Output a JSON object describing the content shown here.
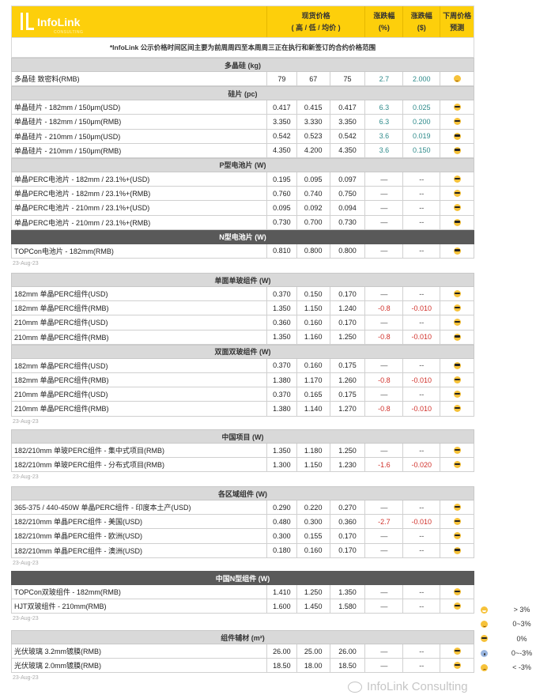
{
  "header": {
    "brand": "InfoLink",
    "brand_sub": "CONSULTING",
    "col_price": "现货价格",
    "col_price_sub": "( 高 / 低 / 均价 )",
    "col_pct": "涨跌幅",
    "col_pct_unit": "(%)",
    "col_usd": "涨跌幅",
    "col_usd_unit": "($)",
    "col_forecast": "下周价格",
    "col_forecast2": "预测"
  },
  "note": "*InfoLink 公示价格时间区间主要为前周周四至本周周三正在执行和新签订的合约价格范围",
  "colors": {
    "header_yellow": "#fdcf0b",
    "up": "#2d8a8a",
    "down": "#d0302a",
    "section_gray": "#d9d9d9",
    "section_dark": "#595959"
  },
  "blocks": [
    {
      "date": "23-Aug-23",
      "sections": [
        {
          "title": "多晶硅 (kg)",
          "dark": false,
          "rows": [
            {
              "name": "多晶硅 致密料(RMB)",
              "high": "79",
              "low": "67",
              "avg": "75",
              "pct": "2.7",
              "usd": "2.000",
              "trend": "up",
              "forecast": "smile"
            }
          ]
        },
        {
          "title": "硅片 (pc)",
          "dark": false,
          "rows": [
            {
              "name": "单晶硅片 - 182mm / 150μm(USD)",
              "high": "0.417",
              "low": "0.415",
              "avg": "0.417",
              "pct": "6.3",
              "usd": "0.025",
              "trend": "up",
              "forecast": "cool"
            },
            {
              "name": "单晶硅片 - 182mm / 150μm(RMB)",
              "high": "3.350",
              "low": "3.330",
              "avg": "3.350",
              "pct": "6.3",
              "usd": "0.200",
              "trend": "up",
              "forecast": "cool"
            },
            {
              "name": "单晶硅片 - 210mm / 150μm(USD)",
              "high": "0.542",
              "low": "0.523",
              "avg": "0.542",
              "pct": "3.6",
              "usd": "0.019",
              "trend": "up",
              "forecast": "cool"
            },
            {
              "name": "单晶硅片 - 210mm / 150μm(RMB)",
              "high": "4.350",
              "low": "4.200",
              "avg": "4.350",
              "pct": "3.6",
              "usd": "0.150",
              "trend": "up",
              "forecast": "cool"
            }
          ]
        },
        {
          "title": "P型电池片 (W)",
          "dark": false,
          "rows": [
            {
              "name": "单晶PERC电池片 - 182mm / 23.1%+(USD)",
              "high": "0.195",
              "low": "0.095",
              "avg": "0.097",
              "pct": "—",
              "usd": "--",
              "trend": "flat",
              "forecast": "cool"
            },
            {
              "name": "单晶PERC电池片 - 182mm / 23.1%+(RMB)",
              "high": "0.760",
              "low": "0.740",
              "avg": "0.750",
              "pct": "—",
              "usd": "--",
              "trend": "flat",
              "forecast": "cool"
            },
            {
              "name": "单晶PERC电池片 - 210mm / 23.1%+(USD)",
              "high": "0.095",
              "low": "0.092",
              "avg": "0.094",
              "pct": "—",
              "usd": "--",
              "trend": "flat",
              "forecast": "cool"
            },
            {
              "name": "单晶PERC电池片 - 210mm / 23.1%+(RMB)",
              "high": "0.730",
              "low": "0.700",
              "avg": "0.730",
              "pct": "—",
              "usd": "--",
              "trend": "flat",
              "forecast": "cool"
            }
          ]
        },
        {
          "title": "N型电池片 (W)",
          "dark": true,
          "rows": [
            {
              "name": "TOPCon电池片 - 182mm(RMB)",
              "high": "0.810",
              "low": "0.800",
              "avg": "0.800",
              "pct": "—",
              "usd": "--",
              "trend": "flat",
              "forecast": "cool"
            }
          ]
        }
      ]
    },
    {
      "date": "23-Aug-23",
      "sections": [
        {
          "title": "单面单玻组件 (W)",
          "dark": false,
          "rows": [
            {
              "name": "182mm 单晶PERC组件(USD)",
              "high": "0.370",
              "low": "0.150",
              "avg": "0.170",
              "pct": "—",
              "usd": "--",
              "trend": "flat",
              "forecast": "cool"
            },
            {
              "name": "182mm 单晶PERC组件(RMB)",
              "high": "1.350",
              "low": "1.150",
              "avg": "1.240",
              "pct": "-0.8",
              "usd": "-0.010",
              "trend": "down",
              "forecast": "cool"
            },
            {
              "name": "210mm 单晶PERC组件(USD)",
              "high": "0.360",
              "low": "0.160",
              "avg": "0.170",
              "pct": "—",
              "usd": "--",
              "trend": "flat",
              "forecast": "cool"
            },
            {
              "name": "210mm 单晶PERC组件(RMB)",
              "high": "1.350",
              "low": "1.160",
              "avg": "1.250",
              "pct": "-0.8",
              "usd": "-0.010",
              "trend": "down",
              "forecast": "cool"
            }
          ]
        },
        {
          "title": "双面双玻组件 (W)",
          "dark": false,
          "rows": [
            {
              "name": "182mm 单晶PERC组件(USD)",
              "high": "0.370",
              "low": "0.160",
              "avg": "0.175",
              "pct": "—",
              "usd": "--",
              "trend": "flat",
              "forecast": "cool"
            },
            {
              "name": "182mm 单晶PERC组件(RMB)",
              "high": "1.380",
              "low": "1.170",
              "avg": "1.260",
              "pct": "-0.8",
              "usd": "-0.010",
              "trend": "down",
              "forecast": "cool"
            },
            {
              "name": "210mm 单晶PERC组件(USD)",
              "high": "0.370",
              "low": "0.165",
              "avg": "0.175",
              "pct": "—",
              "usd": "--",
              "trend": "flat",
              "forecast": "cool"
            },
            {
              "name": "210mm 单晶PERC组件(RMB)",
              "high": "1.380",
              "low": "1.140",
              "avg": "1.270",
              "pct": "-0.8",
              "usd": "-0.010",
              "trend": "down",
              "forecast": "cool"
            }
          ]
        }
      ]
    },
    {
      "date": "23-Aug-23",
      "sections": [
        {
          "title": "中国项目 (W)",
          "dark": false,
          "rows": [
            {
              "name": "182/210mm 单玻PERC组件 - 集中式项目(RMB)",
              "high": "1.350",
              "low": "1.180",
              "avg": "1.250",
              "pct": "—",
              "usd": "--",
              "trend": "flat",
              "forecast": "cool"
            },
            {
              "name": "182/210mm 单玻PERC组件 - 分布式项目(RMB)",
              "high": "1.300",
              "low": "1.150",
              "avg": "1.230",
              "pct": "-1.6",
              "usd": "-0.020",
              "trend": "down",
              "forecast": "cool"
            }
          ]
        }
      ]
    },
    {
      "date": "23-Aug-23",
      "sections": [
        {
          "title": "各区域组件 (W)",
          "dark": false,
          "rows": [
            {
              "name": "365-375 / 440-450W 单晶PERC组件 - 印度本土产(USD)",
              "high": "0.290",
              "low": "0.220",
              "avg": "0.270",
              "pct": "—",
              "usd": "--",
              "trend": "flat",
              "forecast": "cool"
            },
            {
              "name": "182/210mm 单晶PERC组件 - 美国(USD)",
              "high": "0.480",
              "low": "0.300",
              "avg": "0.360",
              "pct": "-2.7",
              "usd": "-0.010",
              "trend": "down",
              "forecast": "cool"
            },
            {
              "name": "182/210mm 单晶PERC组件 - 欧洲(USD)",
              "high": "0.300",
              "low": "0.155",
              "avg": "0.170",
              "pct": "—",
              "usd": "--",
              "trend": "flat",
              "forecast": "cool"
            },
            {
              "name": "182/210mm 单晶PERC组件 - 澳洲(USD)",
              "high": "0.180",
              "low": "0.160",
              "avg": "0.170",
              "pct": "—",
              "usd": "--",
              "trend": "flat",
              "forecast": "cool"
            }
          ]
        }
      ]
    },
    {
      "date": "23-Aug-23",
      "sections": [
        {
          "title": "中国N型组件 (W)",
          "dark": true,
          "rows": [
            {
              "name": "TOPCon双玻组件 - 182mm(RMB)",
              "high": "1.410",
              "low": "1.250",
              "avg": "1.350",
              "pct": "—",
              "usd": "--",
              "trend": "flat",
              "forecast": "cool"
            },
            {
              "name": "HJT双玻组件 - 210mm(RMB)",
              "high": "1.600",
              "low": "1.450",
              "avg": "1.580",
              "pct": "—",
              "usd": "--",
              "trend": "flat",
              "forecast": "cool"
            }
          ]
        }
      ]
    },
    {
      "date": "23-Aug-23",
      "sections": [
        {
          "title": "组件辅材 (m²)",
          "dark": false,
          "rows": [
            {
              "name": "光伏玻璃 3.2mm镀膜(RMB)",
              "high": "26.00",
              "low": "25.00",
              "avg": "26.00",
              "pct": "—",
              "usd": "--",
              "trend": "flat",
              "forecast": "cool"
            },
            {
              "name": "光伏玻璃 2.0mm镀膜(RMB)",
              "high": "18.50",
              "low": "18.00",
              "avg": "18.50",
              "pct": "—",
              "usd": "--",
              "trend": "flat",
              "forecast": "cool"
            }
          ]
        }
      ]
    }
  ],
  "legend": [
    {
      "icon": "grin",
      "label": "> 3%"
    },
    {
      "icon": "smile",
      "label": "0~3%"
    },
    {
      "icon": "cool",
      "label": "0%"
    },
    {
      "icon": "scream",
      "label": "0~-3%"
    },
    {
      "icon": "cry",
      "label": "< -3%"
    }
  ],
  "watermark": "InfoLink Consulting"
}
